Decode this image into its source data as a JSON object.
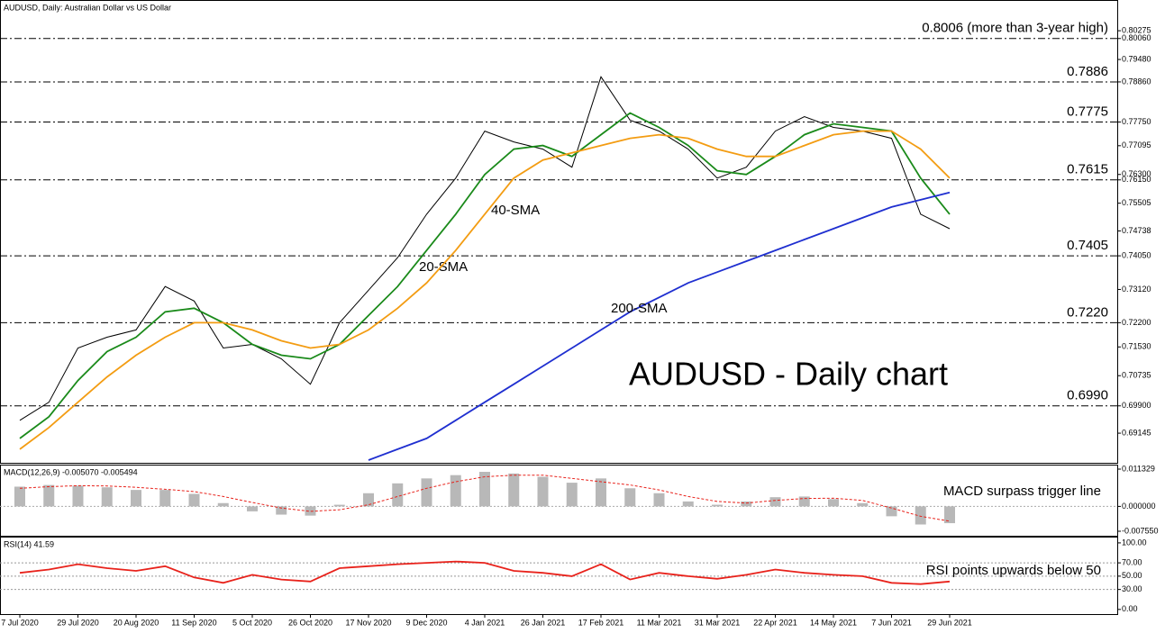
{
  "chart_data": [
    {
      "type": "line",
      "title": "AUDUSD, Daily:  Australian Dollar vs US Dollar",
      "annotation": "AUDUSD - Daily chart",
      "categories": [
        "7 Jul 2020",
        null,
        "29 Jul 2020",
        null,
        "20 Aug 2020",
        null,
        "11 Sep 2020",
        null,
        "5 Oct 2020",
        null,
        "26 Oct 2020",
        null,
        "17 Nov 2020",
        null,
        "9 Dec 2020",
        null,
        "4 Jan 2021",
        null,
        "26 Jan 2021",
        null,
        "17 Feb 2021",
        null,
        "11 Mar 2021",
        null,
        "31 Mar 2021",
        null,
        "22 Apr 2021",
        null,
        "14 May 2021",
        null,
        "7 Jun 2021",
        null,
        "29 Jun 2021"
      ],
      "series": [
        {
          "color": "#000000",
          "values": [
            0.695,
            0.7,
            0.715,
            0.718,
            0.72,
            0.732,
            0.728,
            0.715,
            0.716,
            0.712,
            0.705,
            0.722,
            0.731,
            0.74,
            0.752,
            0.762,
            0.775,
            0.772,
            0.77,
            0.765,
            0.79,
            0.778,
            0.775,
            0.77,
            0.762,
            0.765,
            0.775,
            0.779,
            0.776,
            0.775,
            0.773,
            0.752,
            0.748
          ]
        },
        {
          "name": "20-SMA",
          "color": "#1a8a1a",
          "values": [
            0.69,
            0.696,
            0.706,
            0.714,
            0.718,
            0.725,
            0.726,
            0.722,
            0.716,
            0.713,
            0.712,
            0.716,
            0.724,
            0.732,
            0.742,
            0.752,
            0.763,
            0.77,
            0.771,
            0.768,
            0.774,
            0.78,
            0.776,
            0.771,
            0.764,
            0.763,
            0.768,
            0.774,
            0.777,
            0.776,
            0.775,
            0.762,
            0.752
          ]
        },
        {
          "name": "40-SMA",
          "color": "#f39c12",
          "values": [
            0.687,
            0.693,
            0.7,
            0.707,
            0.713,
            0.718,
            0.722,
            0.722,
            0.72,
            0.717,
            0.715,
            0.716,
            0.72,
            0.726,
            0.733,
            0.742,
            0.752,
            0.762,
            0.767,
            0.769,
            0.771,
            0.773,
            0.774,
            0.773,
            0.77,
            0.768,
            0.768,
            0.771,
            0.774,
            0.775,
            0.775,
            0.77,
            0.762
          ]
        },
        {
          "name": "200-SMA",
          "color": "#1f2fd0",
          "values": [
            null,
            null,
            null,
            null,
            null,
            null,
            null,
            null,
            null,
            null,
            null,
            null,
            0.684,
            0.687,
            0.69,
            0.695,
            0.7,
            0.705,
            0.71,
            0.715,
            0.72,
            0.725,
            0.729,
            0.733,
            0.736,
            0.739,
            0.742,
            0.745,
            0.748,
            0.751,
            0.754,
            0.756,
            0.758
          ]
        }
      ],
      "levels": [
        {
          "value": 0.8006,
          "label": "0.8006 (more than 3-year high)",
          "color": "#e8221b"
        },
        {
          "value": 0.7886,
          "label": "0.7886",
          "color": "#e8221b"
        },
        {
          "value": 0.7775,
          "label": "0.7775",
          "color": "#e8221b"
        },
        {
          "value": 0.7615,
          "label": "0.7615",
          "color": "#e8221b"
        },
        {
          "value": 0.7405,
          "label": "0.7405",
          "color": "#2e8b1e"
        },
        {
          "value": 0.722,
          "label": "0.7220",
          "color": "#2e8b1e"
        },
        {
          "value": 0.699,
          "label": "0.6990",
          "color": "#2e8b1e"
        }
      ],
      "ylim": [
        0.683,
        0.811
      ],
      "yticks": [
        0.80275,
        {
          "value": 0.8006,
          "label": "0.80060"
        },
        {
          "value": 0.7948,
          "label": "0.79480"
        },
        {
          "value": 0.7886,
          "label": "0.78860"
        },
        {
          "value": 0.7775,
          "label": "0.77750"
        },
        0.77095,
        {
          "value": 0.763,
          "label": "0.76300"
        },
        {
          "value": 0.7615,
          "label": "0.76150"
        },
        0.75505,
        0.74738,
        {
          "value": 0.7405,
          "label": "0.74050"
        },
        {
          "value": 0.7312,
          "label": "0.73120"
        },
        {
          "value": 0.722,
          "label": "0.72200"
        },
        {
          "value": 0.7153,
          "label": "0.71530"
        },
        0.70735,
        {
          "value": 0.699,
          "label": "0.69900"
        },
        0.69145
      ]
    },
    {
      "type": "bar",
      "title": "MACD(12,26,9) -0.005070 -0.005494",
      "annotation": "MACD surpass trigger line",
      "color": "#b8b8b8",
      "values": [
        0.006,
        0.0065,
        0.0063,
        0.0058,
        0.005,
        0.005,
        0.0038,
        0.001,
        -0.0015,
        -0.0025,
        -0.0028,
        0.0005,
        0.004,
        0.007,
        0.0085,
        0.0095,
        0.0105,
        0.01,
        0.009,
        0.0072,
        0.0085,
        0.0055,
        0.004,
        0.0015,
        0.0005,
        0.0015,
        0.0028,
        0.003,
        0.0022,
        0.001,
        -0.003,
        -0.0055,
        -0.0051
      ],
      "signal": {
        "color": "#e8221b",
        "values": [
          0.0055,
          0.006,
          0.0063,
          0.0062,
          0.0058,
          0.0052,
          0.0045,
          0.003,
          0.0012,
          -0.0005,
          -0.0015,
          -0.001,
          0.0005,
          0.003,
          0.0055,
          0.0075,
          0.009,
          0.0095,
          0.0095,
          0.0085,
          0.0075,
          0.0065,
          0.005,
          0.003,
          0.0015,
          0.001,
          0.0018,
          0.0024,
          0.0025,
          0.0018,
          -0.0005,
          -0.003,
          -0.0045
        ]
      },
      "ylim": [
        -0.00892,
        0.01242
      ],
      "yticks": [
        0.011329,
        {
          "value": 0,
          "label": "0.000000"
        },
        {
          "value": -0.00755,
          "label": "-0.007550"
        }
      ]
    },
    {
      "type": "line",
      "title": "RSI(14) 41.59",
      "annotation": "RSI points upwards below 50",
      "series": [
        {
          "color": "#e8221b",
          "values": [
            55,
            60,
            68,
            62,
            58,
            65,
            48,
            40,
            52,
            45,
            42,
            62,
            65,
            68,
            70,
            72,
            70,
            58,
            55,
            50,
            68,
            45,
            55,
            50,
            46,
            52,
            60,
            55,
            52,
            50,
            40,
            38,
            42
          ]
        }
      ],
      "ylim": [
        -7,
        108
      ],
      "yticks": [
        {
          "value": 100,
          "label": "100.00"
        },
        {
          "value": 70,
          "label": "70.00"
        },
        {
          "value": 50,
          "label": "50.00"
        },
        {
          "value": 30,
          "label": "30.00"
        },
        {
          "value": 0,
          "label": "0.00"
        }
      ]
    }
  ]
}
